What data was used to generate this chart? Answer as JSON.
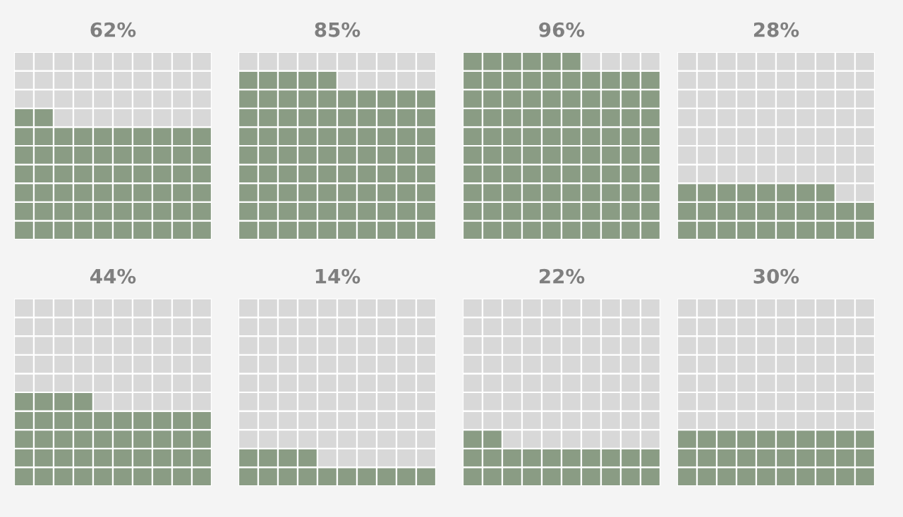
{
  "chart_data": [
    {
      "type": "other",
      "values": [
        62
      ],
      "value_labels": [
        "62%"
      ],
      "colors": [
        "#8a9c84"
      ]
    },
    {
      "type": "other",
      "values": [
        85
      ],
      "value_labels": [
        "85%"
      ],
      "colors": [
        "#8a9c84"
      ]
    },
    {
      "type": "other",
      "values": [
        96
      ],
      "value_labels": [
        "96%"
      ],
      "colors": [
        "#8a9c84"
      ]
    },
    {
      "type": "other",
      "values": [
        28
      ],
      "value_labels": [
        "28%"
      ],
      "colors": [
        "#8a9c84"
      ]
    },
    {
      "type": "other",
      "values": [
        44
      ],
      "value_labels": [
        "44%"
      ],
      "colors": [
        "#8a9c84"
      ]
    },
    {
      "type": "other",
      "values": [
        14
      ],
      "value_labels": [
        "14%"
      ],
      "colors": [
        "#8a9c84"
      ]
    },
    {
      "type": "other",
      "values": [
        22
      ],
      "value_labels": [
        "22%"
      ],
      "colors": [
        "#8a9c84"
      ]
    },
    {
      "type": "other",
      "values": [
        30
      ],
      "value_labels": [
        "30%"
      ],
      "colors": [
        "#8a9c84"
      ]
    }
  ]
}
